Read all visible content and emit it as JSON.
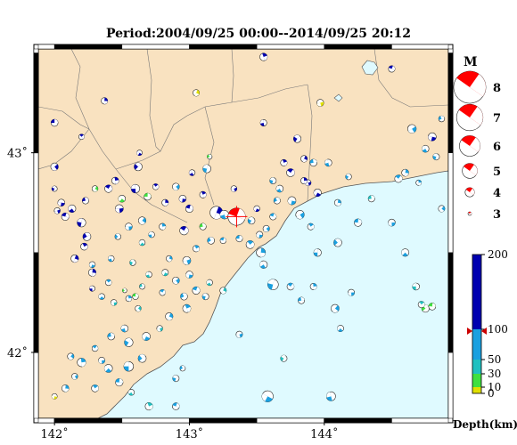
{
  "title": "Period:2004/09/25 00:00--2014/09/25 20:12",
  "map": {
    "lon_range": [
      141.88,
      144.92
    ],
    "lat_range": [
      41.67,
      43.52
    ],
    "x_ticks": [
      {
        "v": 142,
        "label": "142˚"
      },
      {
        "v": 143,
        "label": "143˚"
      },
      {
        "v": 144,
        "label": "144˚"
      }
    ],
    "y_ticks": [
      {
        "v": 42,
        "label": "42˚"
      },
      {
        "v": 43,
        "label": "43˚"
      }
    ],
    "colors": {
      "land": "#f9e2c0",
      "sea": "#dffaff",
      "border": "#555555"
    }
  },
  "magnitude_legend": {
    "title": "M",
    "entries": [
      {
        "label": "8",
        "m": 8
      },
      {
        "label": "7",
        "m": 7
      },
      {
        "label": "6",
        "m": 6
      },
      {
        "label": "5",
        "m": 5
      },
      {
        "label": "4",
        "m": 4
      },
      {
        "label": "3",
        "m": 3
      }
    ]
  },
  "depth_legend": {
    "title": "Depth(km)",
    "ticks": [
      "0",
      "10",
      "30",
      "50",
      "100",
      "200"
    ],
    "values": [
      0,
      10,
      30,
      50,
      100,
      200
    ],
    "marker_depth": 97,
    "colors": {
      "0-10": "#e0e000",
      "10-30": "#40e040",
      "30-50": "#20c0c0",
      "50-100": "#1aa0e0",
      "100-200": "#0000b0"
    }
  },
  "highlight_event": {
    "lon": 143.35,
    "lat": 42.68,
    "m": 5.5,
    "color": "#ff0000"
  },
  "events": [
    {
      "lon": 142.0,
      "lat": 43.15,
      "m": 3.5,
      "c": "#0000b0"
    },
    {
      "lon": 142.2,
      "lat": 43.08,
      "m": 3.2,
      "c": "#0000b0"
    },
    {
      "lon": 142.37,
      "lat": 43.26,
      "m": 3.4,
      "c": "#0000b0"
    },
    {
      "lon": 142.0,
      "lat": 42.93,
      "m": 3.6,
      "c": "#0000b0"
    },
    {
      "lon": 142.05,
      "lat": 42.75,
      "m": 3.5,
      "c": "#0000b0"
    },
    {
      "lon": 142.13,
      "lat": 42.72,
      "m": 3.6,
      "c": "#0000b0"
    },
    {
      "lon": 142.2,
      "lat": 42.65,
      "m": 3.8,
      "c": "#0000b0"
    },
    {
      "lon": 142.24,
      "lat": 42.58,
      "m": 3.7,
      "c": "#0000b0"
    },
    {
      "lon": 142.08,
      "lat": 42.68,
      "m": 3.6,
      "c": "#0000b0"
    },
    {
      "lon": 142.22,
      "lat": 42.53,
      "m": 3.5,
      "c": "#0000b0"
    },
    {
      "lon": 142.15,
      "lat": 42.47,
      "m": 3.6,
      "c": "#0000b0"
    },
    {
      "lon": 142.02,
      "lat": 42.71,
      "m": 3.3,
      "c": "#0000b0"
    },
    {
      "lon": 142.28,
      "lat": 42.44,
      "m": 3.3,
      "c": "#1aa0e0"
    },
    {
      "lon": 142.42,
      "lat": 42.47,
      "m": 3.3,
      "c": "#1aa0e0"
    },
    {
      "lon": 142.0,
      "lat": 42.82,
      "m": 3.2,
      "c": "#0000b0"
    },
    {
      "lon": 142.23,
      "lat": 42.76,
      "m": 3.4,
      "c": "#0000b0"
    },
    {
      "lon": 142.4,
      "lat": 42.82,
      "m": 3.6,
      "c": "#0000b0"
    },
    {
      "lon": 142.45,
      "lat": 42.86,
      "m": 3.5,
      "c": "#0000b0"
    },
    {
      "lon": 142.3,
      "lat": 42.82,
      "m": 3.3,
      "c": "#40e040"
    },
    {
      "lon": 142.48,
      "lat": 42.72,
      "m": 3.7,
      "c": "#0000b0"
    },
    {
      "lon": 142.5,
      "lat": 42.77,
      "m": 3.5,
      "c": "#40e040"
    },
    {
      "lon": 142.6,
      "lat": 42.82,
      "m": 3.8,
      "c": "#0000b0"
    },
    {
      "lon": 142.62,
      "lat": 42.93,
      "m": 3.7,
      "c": "#0000b0"
    },
    {
      "lon": 142.69,
      "lat": 42.78,
      "m": 3.5,
      "c": "#40e040"
    },
    {
      "lon": 142.75,
      "lat": 42.83,
      "m": 3.3,
      "c": "#0000b0"
    },
    {
      "lon": 142.82,
      "lat": 42.75,
      "m": 3.4,
      "c": "#0000b0"
    },
    {
      "lon": 142.9,
      "lat": 42.83,
      "m": 3.5,
      "c": "#1aa0e0"
    },
    {
      "lon": 142.95,
      "lat": 42.77,
      "m": 3.5,
      "c": "#0000b0"
    },
    {
      "lon": 143.02,
      "lat": 42.9,
      "m": 3.3,
      "c": "#0000b0"
    },
    {
      "lon": 143.13,
      "lat": 42.92,
      "m": 3.7,
      "c": "#1aa0e0"
    },
    {
      "lon": 143.15,
      "lat": 42.98,
      "m": 3.1,
      "c": "#40e040"
    },
    {
      "lon": 143.0,
      "lat": 42.72,
      "m": 3.6,
      "c": "#0000b0"
    },
    {
      "lon": 143.1,
      "lat": 42.79,
      "m": 3.4,
      "c": "#0000b0"
    },
    {
      "lon": 143.2,
      "lat": 42.7,
      "m": 4.6,
      "c": "#0000b0"
    },
    {
      "lon": 143.33,
      "lat": 42.82,
      "m": 3.3,
      "c": "#0000b0"
    },
    {
      "lon": 143.5,
      "lat": 42.72,
      "m": 3.3,
      "c": "#0000b0"
    },
    {
      "lon": 143.26,
      "lat": 42.69,
      "m": 3.8,
      "c": "#1aa0e0"
    },
    {
      "lon": 143.46,
      "lat": 42.66,
      "m": 3.5,
      "c": "#1aa0e0"
    },
    {
      "lon": 143.1,
      "lat": 42.63,
      "m": 3.4,
      "c": "#40e040"
    },
    {
      "lon": 142.96,
      "lat": 42.61,
      "m": 3.8,
      "c": "#0000b0"
    },
    {
      "lon": 142.8,
      "lat": 42.63,
      "m": 3.4,
      "c": "#1aa0e0"
    },
    {
      "lon": 142.65,
      "lat": 42.66,
      "m": 3.6,
      "c": "#1aa0e0"
    },
    {
      "lon": 142.55,
      "lat": 42.63,
      "m": 3.5,
      "c": "#1aa0e0"
    },
    {
      "lon": 142.65,
      "lat": 42.55,
      "m": 3.3,
      "c": "#20c0c0"
    },
    {
      "lon": 142.72,
      "lat": 42.59,
      "m": 3.3,
      "c": "#1aa0e0"
    },
    {
      "lon": 142.47,
      "lat": 42.58,
      "m": 3.3,
      "c": "#1aa0e0"
    },
    {
      "lon": 143.37,
      "lat": 42.57,
      "m": 3.4,
      "c": "#1aa0e0"
    },
    {
      "lon": 143.45,
      "lat": 42.54,
      "m": 3.7,
      "c": "#1aa0e0"
    },
    {
      "lon": 143.53,
      "lat": 42.5,
      "m": 3.9,
      "c": "#1aa0e0"
    },
    {
      "lon": 143.57,
      "lat": 42.62,
      "m": 3.4,
      "c": "#1aa0e0"
    },
    {
      "lon": 143.52,
      "lat": 42.59,
      "m": 3.4,
      "c": "#1aa0e0"
    },
    {
      "lon": 143.55,
      "lat": 42.44,
      "m": 3.6,
      "c": "#1aa0e0"
    },
    {
      "lon": 143.62,
      "lat": 42.34,
      "m": 4.2,
      "c": "#1aa0e0"
    },
    {
      "lon": 143.16,
      "lat": 42.56,
      "m": 3.5,
      "c": "#1aa0e0"
    },
    {
      "lon": 143.25,
      "lat": 42.56,
      "m": 3.3,
      "c": "#1aa0e0"
    },
    {
      "lon": 143.05,
      "lat": 42.52,
      "m": 3.4,
      "c": "#1aa0e0"
    },
    {
      "lon": 142.85,
      "lat": 42.47,
      "m": 3.3,
      "c": "#1aa0e0"
    },
    {
      "lon": 142.98,
      "lat": 42.46,
      "m": 3.7,
      "c": "#1aa0e0"
    },
    {
      "lon": 142.82,
      "lat": 42.4,
      "m": 3.4,
      "c": "#20c0c0"
    },
    {
      "lon": 142.7,
      "lat": 42.39,
      "m": 3.3,
      "c": "#20c0c0"
    },
    {
      "lon": 142.58,
      "lat": 42.45,
      "m": 3.3,
      "c": "#20c0c0"
    },
    {
      "lon": 142.65,
      "lat": 42.33,
      "m": 3.2,
      "c": "#20c0c0"
    },
    {
      "lon": 142.8,
      "lat": 42.3,
      "m": 3.3,
      "c": "#1aa0e0"
    },
    {
      "lon": 142.55,
      "lat": 42.27,
      "m": 3.3,
      "c": "#1aa0e0"
    },
    {
      "lon": 142.62,
      "lat": 42.22,
      "m": 3.3,
      "c": "#20c0c0"
    },
    {
      "lon": 142.44,
      "lat": 42.25,
      "m": 3.3,
      "c": "#20c0c0"
    },
    {
      "lon": 142.35,
      "lat": 42.28,
      "m": 3.3,
      "c": "#1aa0e0"
    },
    {
      "lon": 142.28,
      "lat": 42.32,
      "m": 3.2,
      "c": "#0000b0"
    },
    {
      "lon": 142.52,
      "lat": 42.31,
      "m": 3.0,
      "c": "#40e040"
    },
    {
      "lon": 142.6,
      "lat": 42.28,
      "m": 3.3,
      "c": "#40e040"
    },
    {
      "lon": 142.4,
      "lat": 42.35,
      "m": 3.3,
      "c": "#1aa0e0"
    },
    {
      "lon": 142.28,
      "lat": 42.4,
      "m": 3.6,
      "c": "#0000b0"
    },
    {
      "lon": 142.9,
      "lat": 42.36,
      "m": 3.5,
      "c": "#1aa0e0"
    },
    {
      "lon": 143.0,
      "lat": 42.39,
      "m": 3.5,
      "c": "#1aa0e0"
    },
    {
      "lon": 143.15,
      "lat": 42.35,
      "m": 3.3,
      "c": "#20c0c0"
    },
    {
      "lon": 143.12,
      "lat": 42.28,
      "m": 3.4,
      "c": "#1aa0e0"
    },
    {
      "lon": 142.96,
      "lat": 42.28,
      "m": 3.5,
      "c": "#1aa0e0"
    },
    {
      "lon": 143.05,
      "lat": 42.31,
      "m": 3.6,
      "c": "#1aa0e0"
    },
    {
      "lon": 142.98,
      "lat": 42.22,
      "m": 3.7,
      "c": "#1aa0e0"
    },
    {
      "lon": 142.85,
      "lat": 42.18,
      "m": 3.6,
      "c": "#1aa0e0"
    },
    {
      "lon": 142.78,
      "lat": 42.12,
      "m": 3.3,
      "c": "#20c0c0"
    },
    {
      "lon": 142.68,
      "lat": 42.08,
      "m": 3.7,
      "c": "#1aa0e0"
    },
    {
      "lon": 142.52,
      "lat": 42.12,
      "m": 3.5,
      "c": "#1aa0e0"
    },
    {
      "lon": 142.55,
      "lat": 42.05,
      "m": 3.8,
      "c": "#1aa0e0"
    },
    {
      "lon": 142.42,
      "lat": 42.08,
      "m": 3.5,
      "c": "#1aa0e0"
    },
    {
      "lon": 142.3,
      "lat": 42.02,
      "m": 3.3,
      "c": "#1aa0e0"
    },
    {
      "lon": 142.2,
      "lat": 41.95,
      "m": 3.8,
      "c": "#1aa0e0"
    },
    {
      "lon": 142.12,
      "lat": 41.98,
      "m": 3.4,
      "c": "#1aa0e0"
    },
    {
      "lon": 142.35,
      "lat": 41.96,
      "m": 3.4,
      "c": "#1aa0e0"
    },
    {
      "lon": 142.4,
      "lat": 41.92,
      "m": 3.7,
      "c": "#1aa0e0"
    },
    {
      "lon": 142.55,
      "lat": 41.93,
      "m": 4.0,
      "c": "#1aa0e0"
    },
    {
      "lon": 142.65,
      "lat": 41.97,
      "m": 3.7,
      "c": "#1aa0e0"
    },
    {
      "lon": 142.48,
      "lat": 41.85,
      "m": 3.6,
      "c": "#1aa0e0"
    },
    {
      "lon": 142.3,
      "lat": 41.82,
      "m": 3.5,
      "c": "#1aa0e0"
    },
    {
      "lon": 142.08,
      "lat": 41.82,
      "m": 3.5,
      "c": "#1aa0e0"
    },
    {
      "lon": 142.15,
      "lat": 41.88,
      "m": 3.3,
      "c": "#1aa0e0"
    },
    {
      "lon": 142.0,
      "lat": 41.78,
      "m": 3.2,
      "c": "#e0e000"
    },
    {
      "lon": 142.57,
      "lat": 41.8,
      "m": 3.3,
      "c": "#20c0c0"
    },
    {
      "lon": 142.9,
      "lat": 41.87,
      "m": 3.4,
      "c": "#1aa0e0"
    },
    {
      "lon": 142.95,
      "lat": 41.92,
      "m": 3.2,
      "c": "#1aa0e0"
    },
    {
      "lon": 142.9,
      "lat": 41.73,
      "m": 3.5,
      "c": "#1aa0e0"
    },
    {
      "lon": 142.7,
      "lat": 41.73,
      "m": 3.6,
      "c": "#20c0c0"
    },
    {
      "lon": 143.25,
      "lat": 42.31,
      "m": 3.4,
      "c": "#20c0c0"
    },
    {
      "lon": 143.37,
      "lat": 42.09,
      "m": 3.4,
      "c": "#1aa0e0"
    },
    {
      "lon": 143.58,
      "lat": 41.78,
      "m": 4.3,
      "c": "#1aa0e0"
    },
    {
      "lon": 144.05,
      "lat": 41.78,
      "m": 3.9,
      "c": "#1aa0e0"
    },
    {
      "lon": 143.7,
      "lat": 41.97,
      "m": 3.4,
      "c": "#20c0c0"
    },
    {
      "lon": 143.83,
      "lat": 42.26,
      "m": 3.4,
      "c": "#1aa0e0"
    },
    {
      "lon": 143.75,
      "lat": 42.33,
      "m": 3.5,
      "c": "#1aa0e0"
    },
    {
      "lon": 143.92,
      "lat": 42.33,
      "m": 3.4,
      "c": "#1aa0e0"
    },
    {
      "lon": 144.08,
      "lat": 42.22,
      "m": 3.7,
      "c": "#1aa0e0"
    },
    {
      "lon": 144.2,
      "lat": 42.3,
      "m": 3.4,
      "c": "#1aa0e0"
    },
    {
      "lon": 144.12,
      "lat": 42.12,
      "m": 3.4,
      "c": "#1aa0e0"
    },
    {
      "lon": 143.95,
      "lat": 42.5,
      "m": 3.6,
      "c": "#1aa0e0"
    },
    {
      "lon": 144.1,
      "lat": 42.55,
      "m": 3.7,
      "c": "#1aa0e0"
    },
    {
      "lon": 144.25,
      "lat": 42.65,
      "m": 3.6,
      "c": "#1aa0e0"
    },
    {
      "lon": 143.9,
      "lat": 42.63,
      "m": 3.4,
      "c": "#1aa0e0"
    },
    {
      "lon": 144.1,
      "lat": 42.75,
      "m": 3.4,
      "c": "#1aa0e0"
    },
    {
      "lon": 143.82,
      "lat": 42.69,
      "m": 3.8,
      "c": "#1aa0e0"
    },
    {
      "lon": 143.76,
      "lat": 42.76,
      "m": 3.7,
      "c": "#1aa0e0"
    },
    {
      "lon": 143.67,
      "lat": 42.82,
      "m": 3.5,
      "c": "#1aa0e0"
    },
    {
      "lon": 143.62,
      "lat": 42.86,
      "m": 3.4,
      "c": "#1aa0e0"
    },
    {
      "lon": 143.65,
      "lat": 42.76,
      "m": 3.4,
      "c": "#1aa0e0"
    },
    {
      "lon": 143.62,
      "lat": 42.68,
      "m": 3.4,
      "c": "#1aa0e0"
    },
    {
      "lon": 143.7,
      "lat": 42.95,
      "m": 3.4,
      "c": "#0000b0"
    },
    {
      "lon": 143.85,
      "lat": 42.97,
      "m": 3.4,
      "c": "#0000b0"
    },
    {
      "lon": 143.88,
      "lat": 42.85,
      "m": 3.3,
      "c": "#0000b0"
    },
    {
      "lon": 143.95,
      "lat": 42.8,
      "m": 3.6,
      "c": "#0000b0"
    },
    {
      "lon": 144.03,
      "lat": 42.95,
      "m": 3.5,
      "c": "#1aa0e0"
    },
    {
      "lon": 144.18,
      "lat": 42.88,
      "m": 3.3,
      "c": "#1aa0e0"
    },
    {
      "lon": 144.35,
      "lat": 42.77,
      "m": 3.4,
      "c": "#20c0c0"
    },
    {
      "lon": 144.55,
      "lat": 42.87,
      "m": 3.6,
      "c": "#1aa0e0"
    },
    {
      "lon": 144.7,
      "lat": 42.85,
      "m": 3.2,
      "c": "#1aa0e0"
    },
    {
      "lon": 144.87,
      "lat": 42.72,
      "m": 3.4,
      "c": "#1aa0e0"
    },
    {
      "lon": 144.5,
      "lat": 42.65,
      "m": 3.5,
      "c": "#1aa0e0"
    },
    {
      "lon": 144.6,
      "lat": 42.5,
      "m": 3.6,
      "c": "#1aa0e0"
    },
    {
      "lon": 144.68,
      "lat": 42.33,
      "m": 3.5,
      "c": "#20c0c0"
    },
    {
      "lon": 144.75,
      "lat": 42.22,
      "m": 3.6,
      "c": "#40e040"
    },
    {
      "lon": 144.8,
      "lat": 42.23,
      "m": 3.5,
      "c": "#40e040"
    },
    {
      "lon": 144.72,
      "lat": 42.24,
      "m": 3.4,
      "c": "#20c0c0"
    },
    {
      "lon": 144.6,
      "lat": 42.9,
      "m": 3.5,
      "c": "#1aa0e0"
    },
    {
      "lon": 144.65,
      "lat": 43.12,
      "m": 3.8,
      "c": "#1aa0e0"
    },
    {
      "lon": 144.8,
      "lat": 43.08,
      "m": 3.7,
      "c": "#0000b0"
    },
    {
      "lon": 144.75,
      "lat": 43.02,
      "m": 3.5,
      "c": "#1aa0e0"
    },
    {
      "lon": 144.83,
      "lat": 42.98,
      "m": 3.4,
      "c": "#1aa0e0"
    },
    {
      "lon": 144.87,
      "lat": 43.17,
      "m": 3.3,
      "c": "#1aa0e0"
    },
    {
      "lon": 144.5,
      "lat": 43.42,
      "m": 3.4,
      "c": "#0000b0"
    },
    {
      "lon": 143.55,
      "lat": 43.48,
      "m": 3.6,
      "c": "#0000b0"
    },
    {
      "lon": 143.05,
      "lat": 43.3,
      "m": 3.4,
      "c": "#e0e000"
    },
    {
      "lon": 143.97,
      "lat": 43.25,
      "m": 3.5,
      "c": "#e0e000"
    },
    {
      "lon": 142.63,
      "lat": 43.0,
      "m": 3.2,
      "c": "#0000b0"
    },
    {
      "lon": 143.55,
      "lat": 43.15,
      "m": 3.4,
      "c": "#0000b0"
    },
    {
      "lon": 143.8,
      "lat": 43.07,
      "m": 3.6,
      "c": "#0000b0"
    },
    {
      "lon": 143.92,
      "lat": 42.95,
      "m": 3.5,
      "c": "#1aa0e0"
    },
    {
      "lon": 143.75,
      "lat": 42.9,
      "m": 3.7,
      "c": "#0000b0"
    },
    {
      "lon": 143.85,
      "lat": 42.86,
      "m": 3.4,
      "c": "#0000b0"
    }
  ]
}
